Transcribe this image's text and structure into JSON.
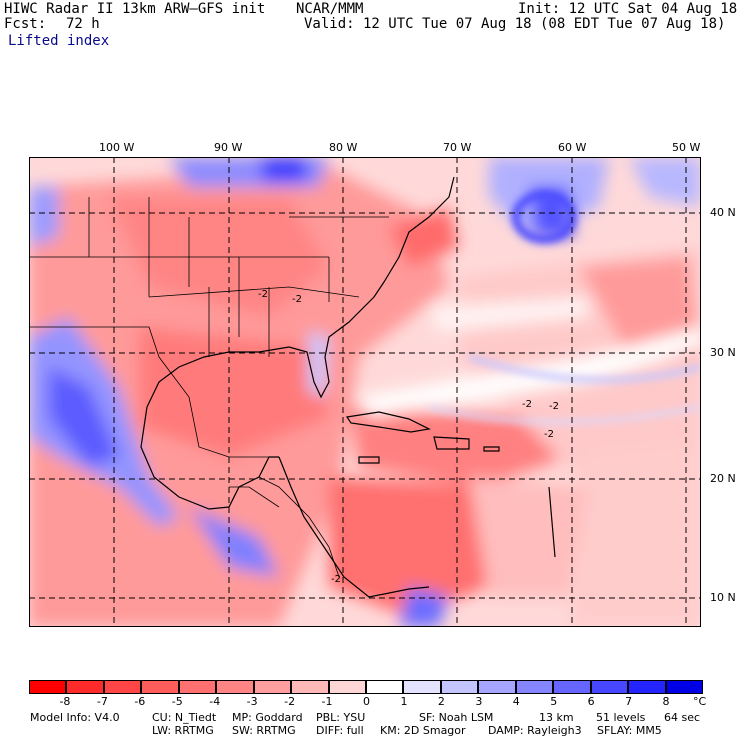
{
  "header": {
    "title_left": "HIWC Radar II 13km ARW–GFS init",
    "title_mid": "NCAR/MMM",
    "init": "Init: 12 UTC Sat 04 Aug 18",
    "fcst_label": "Fcst:",
    "fcst_value": "72 h",
    "valid": "Valid: 12 UTC Tue 07 Aug 18 (08 EDT Tue 07 Aug 18)",
    "field": "Lifted index"
  },
  "map": {
    "lon_labels": [
      "100 W",
      "90 W",
      "80 W",
      "70 W",
      "60 W",
      "50 W"
    ],
    "lat_labels": [
      "40 N",
      "30 N",
      "20 N",
      "10 N"
    ],
    "contour_labels": [
      "-2",
      "-2",
      "-2",
      "-2",
      "-2",
      "-2"
    ]
  },
  "colorbar": {
    "unit": "°C",
    "ticks": [
      "-8",
      "-7",
      "-6",
      "-5",
      "-4",
      "-3",
      "-2",
      "-1",
      "0",
      "1",
      "2",
      "3",
      "4",
      "5",
      "6",
      "7",
      "8"
    ],
    "colors": [
      "#ff0000",
      "#ff2b2b",
      "#ff4545",
      "#ff5c5c",
      "#ff7070",
      "#ff8585",
      "#ff9e9e",
      "#ffb8b8",
      "#ffd6d6",
      "#ffffff",
      "#e3e3ff",
      "#c4c4ff",
      "#a6a6ff",
      "#8585ff",
      "#6666ff",
      "#4747ff",
      "#2424ff",
      "#0000e6"
    ]
  },
  "footer": {
    "model_info": "Model Info: V4.0",
    "cu": "CU: N_Tiedt",
    "mp": "MP: Goddard",
    "pbl": "PBL: YSU",
    "sf": "SF: Noah LSM",
    "res": "13 km",
    "levels": "51 levels",
    "dt": "64 sec",
    "lw": "LW: RRTMG",
    "sw": "SW: RRTMG",
    "diff": "DIFF: full",
    "km": "KM: 2D Smagor",
    "damp": "DAMP: Rayleigh3",
    "sflay": "SFLAY: MM5"
  }
}
